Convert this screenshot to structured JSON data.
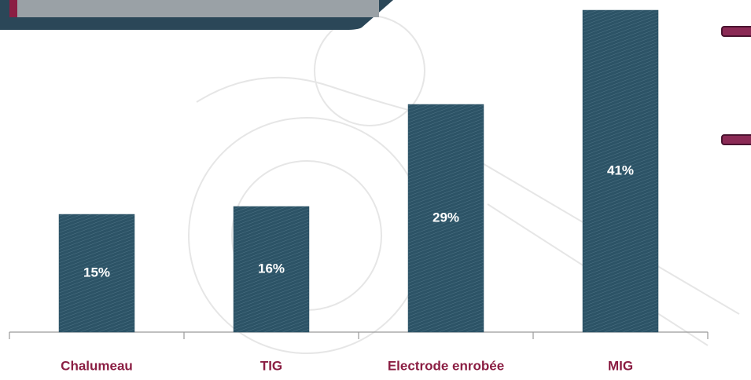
{
  "chart_data": {
    "type": "bar",
    "categories": [
      "Chalumeau",
      "TIG",
      "Electrode enrobée",
      "MIG"
    ],
    "values": [
      15,
      16,
      29,
      41
    ],
    "value_labels": [
      "15%",
      "16%",
      "29%",
      "41%"
    ],
    "color": "#2c5366"
  }
}
